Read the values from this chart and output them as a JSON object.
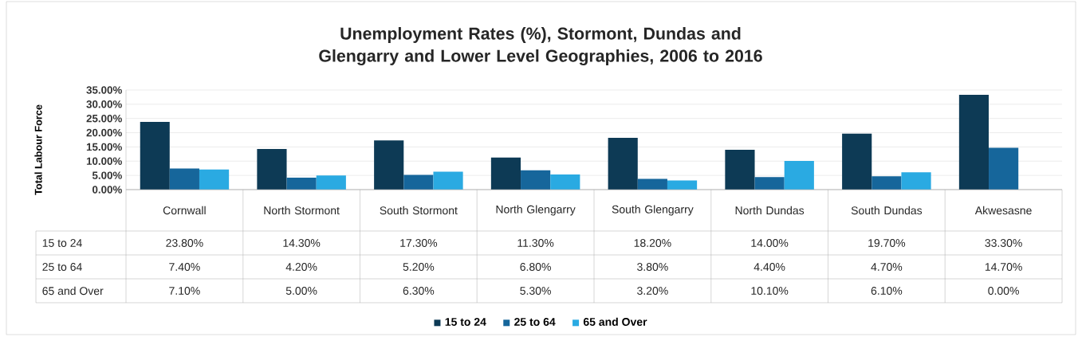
{
  "chart_data": {
    "type": "bar",
    "title": "Unemployment Rates (%), Stormont, Dundas and Glengarry and Lower Level Geographies, 2006 to 2016",
    "ylabel": "Total Labour Force",
    "categories": [
      "Cornwall",
      "North Stormont",
      "South Stormont",
      "North Glengarry",
      "South Glengarry",
      "North Dundas",
      "South Dundas",
      "Akwesasne"
    ],
    "series": [
      {
        "name": "15 to 24",
        "color": "#0d3a55",
        "values": [
          23.8,
          14.3,
          17.3,
          11.3,
          18.2,
          14.0,
          19.7,
          33.3
        ],
        "value_labels": [
          "23.80%",
          "14.30%",
          "17.30%",
          "11.30%",
          "18.20%",
          "14.00%",
          "19.70%",
          "33.30%"
        ]
      },
      {
        "name": "25 to 64",
        "color": "#16669b",
        "values": [
          7.4,
          4.2,
          5.2,
          6.8,
          3.8,
          4.4,
          4.7,
          14.7
        ],
        "value_labels": [
          "7.40%",
          "4.20%",
          "5.20%",
          "6.80%",
          "3.80%",
          "4.40%",
          "4.70%",
          "14.70%"
        ]
      },
      {
        "name": "65 and Over",
        "color": "#2aaae2",
        "values": [
          7.1,
          5.0,
          6.3,
          5.3,
          3.2,
          10.1,
          6.1,
          0.0
        ],
        "value_labels": [
          "7.10%",
          "5.00%",
          "6.30%",
          "5.30%",
          "3.20%",
          "10.10%",
          "6.10%",
          "0.00%"
        ]
      }
    ],
    "ylim": [
      0,
      35
    ],
    "yticks": [
      {
        "value": 0,
        "label": "0.00%"
      },
      {
        "value": 5,
        "label": "5.00%"
      },
      {
        "value": 10,
        "label": "10.00%"
      },
      {
        "value": 15,
        "label": "15.00%"
      },
      {
        "value": 20,
        "label": "20.00%"
      },
      {
        "value": 25,
        "label": "25.00%"
      },
      {
        "value": 30,
        "label": "30.00%"
      },
      {
        "value": 35,
        "label": "35.00%"
      }
    ],
    "grid": "y",
    "legend": "bottom"
  }
}
